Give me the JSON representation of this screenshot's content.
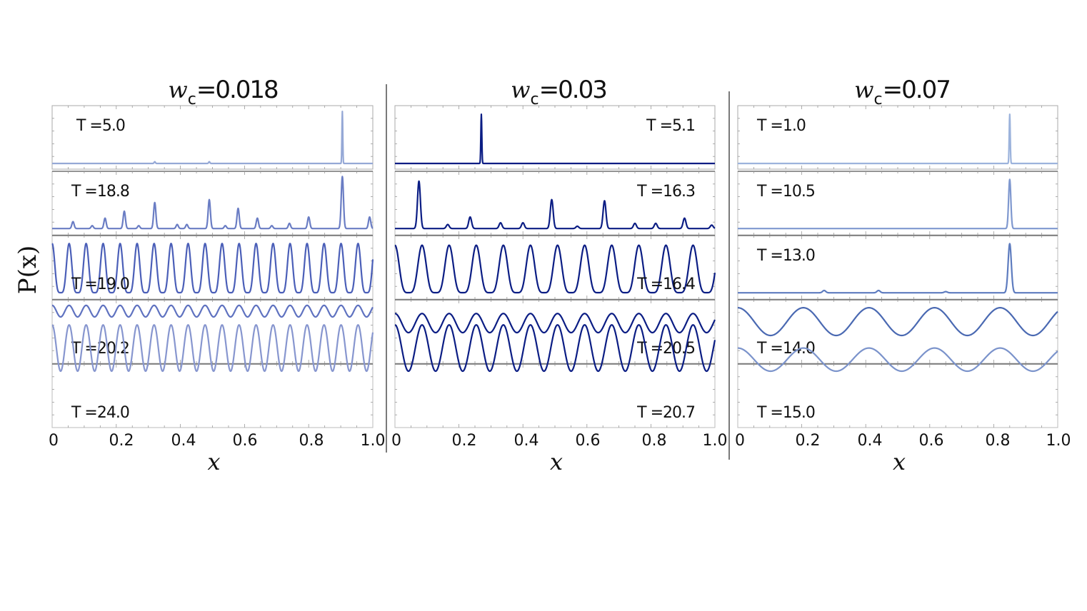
{
  "ylabel": "P(x)",
  "chart_data": {
    "type": "line",
    "ylabel": "P(x)",
    "xlim": [
      0,
      1
    ],
    "xticks": [
      "0",
      "0.2",
      "0.4",
      "0.6",
      "0.8",
      "1.0"
    ],
    "panels": [
      {
        "title_var": "w",
        "title_sub": "c",
        "title_value": "=0.018",
        "xlabel": "x",
        "rows": [
          {
            "label": "T =5.0",
            "label_pos": "top-left",
            "kind": "spike",
            "center": 0.905,
            "height": 0.9,
            "width": 0.0013,
            "minor_peaks": [
              0.32,
              0.49
            ],
            "minor_height": 0.03,
            "color": "#95a8d6"
          },
          {
            "label": "T =18.8",
            "label_pos": "top-left",
            "kind": "peaks",
            "centers": [
              0.065,
              0.125,
              0.165,
              0.225,
              0.27,
              0.32,
              0.39,
              0.42,
              0.49,
              0.54,
              0.58,
              0.64,
              0.685,
              0.74,
              0.8,
              0.905,
              0.99
            ],
            "heights": [
              0.12,
              0.05,
              0.18,
              0.3,
              0.05,
              0.45,
              0.07,
              0.07,
              0.5,
              0.05,
              0.35,
              0.18,
              0.05,
              0.09,
              0.2,
              0.9,
              0.2
            ],
            "width": 0.0035,
            "color": "#6a7dc4"
          },
          {
            "label": "T =19.0",
            "label_pos": "bottom-left",
            "kind": "oscillation",
            "period": 0.053,
            "amplitude": 0.85,
            "color": "#4b5fb8"
          },
          {
            "label": "T =20.2",
            "label_pos": "bottom-left",
            "kind": "oscillation",
            "period": 0.053,
            "amplitude": 0.2,
            "color": "#5f72c0"
          },
          {
            "label": "T =24.0",
            "label_pos": "bottom-left",
            "kind": "flat",
            "period": 0.053,
            "amplitude": 0.02,
            "color": "#8796cf"
          }
        ]
      },
      {
        "title_var": "w",
        "title_sub": "c",
        "title_value": "=0.03",
        "xlabel": "x",
        "rows": [
          {
            "label": "T =5.1",
            "label_pos": "top-right",
            "kind": "spike",
            "center": 0.27,
            "height": 0.85,
            "width": 0.0015,
            "minor_peaks": [],
            "minor_height": 0,
            "color": "#0b1d84"
          },
          {
            "label": "T =16.3",
            "label_pos": "top-right",
            "kind": "peaks",
            "centers": [
              0.075,
              0.165,
              0.235,
              0.33,
              0.4,
              0.49,
              0.57,
              0.655,
              0.75,
              0.815,
              0.905,
              0.99
            ],
            "heights": [
              0.82,
              0.07,
              0.2,
              0.1,
              0.1,
              0.5,
              0.04,
              0.48,
              0.09,
              0.09,
              0.18,
              0.06
            ],
            "width": 0.0045,
            "color": "#0b1d84"
          },
          {
            "label": "T =16.4",
            "label_pos": "bottom-right",
            "kind": "oscillation",
            "period": 0.0847,
            "amplitude": 0.82,
            "color": "#0b1d84"
          },
          {
            "label": "T =20.5",
            "label_pos": "bottom-right",
            "kind": "oscillation",
            "period": 0.0847,
            "amplitude": 0.33,
            "color": "#0b1d84"
          },
          {
            "label": "T =20.7",
            "label_pos": "bottom-right",
            "kind": "flat",
            "period": 0.0847,
            "amplitude": 0.02,
            "color": "#0b1d84"
          }
        ]
      },
      {
        "title_var": "w",
        "title_sub": "c",
        "title_value": "=0.07",
        "xlabel": "x",
        "rows": [
          {
            "label": "T =1.0",
            "label_pos": "top-left",
            "kind": "spike",
            "center": 0.85,
            "height": 0.85,
            "width": 0.0016,
            "minor_peaks": [],
            "minor_height": 0,
            "color": "#9cb3dc"
          },
          {
            "label": "T =10.5",
            "label_pos": "top-left",
            "kind": "peaks",
            "centers": [
              0.85
            ],
            "heights": [
              0.85
            ],
            "width": 0.0035,
            "color": "#7f98cf"
          },
          {
            "label": "T =13.0",
            "label_pos": "top-left",
            "kind": "peaks",
            "centers": [
              0.27,
              0.44,
              0.65,
              0.85
            ],
            "heights": [
              0.04,
              0.04,
              0.02,
              0.85
            ],
            "width": 0.005,
            "color": "#5e7cbf"
          },
          {
            "label": "T =14.0",
            "label_pos": "bottom-left",
            "kind": "oscillation",
            "period": 0.205,
            "amplitude": 0.48,
            "color": "#4a69b2"
          },
          {
            "label": "T =15.0",
            "label_pos": "bottom-left",
            "kind": "flat",
            "period": 0.205,
            "amplitude": 0.01,
            "color": "#7b93cb"
          }
        ]
      }
    ]
  }
}
